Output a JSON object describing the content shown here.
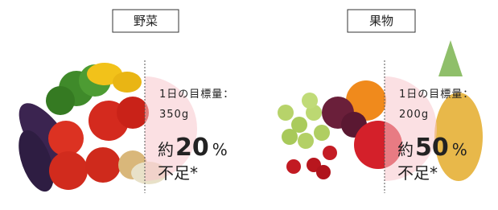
{
  "panels": [
    {
      "label": "野菜",
      "target_label": "1日の目標量：",
      "target_value": "350g",
      "prefix": "約",
      "percent": 20,
      "unit": "%",
      "suffix": "不足*"
    },
    {
      "label": "果物",
      "target_label": "1日の目標量：",
      "target_value": "200g",
      "prefix": "約",
      "percent": 50,
      "unit": "%",
      "suffix": "不足*"
    }
  ]
}
